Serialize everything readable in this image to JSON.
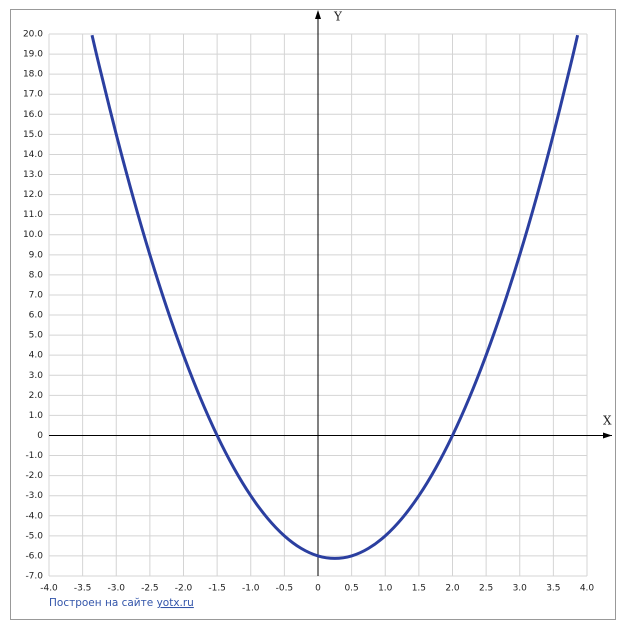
{
  "chart_data": {
    "type": "line",
    "x_label": "X",
    "y_label": "Y",
    "x": [
      -3.36,
      -3.25,
      -3,
      -2.75,
      -2.5,
      -2.25,
      -2,
      -1.75,
      -1.5,
      -1.25,
      -1,
      -0.75,
      -0.5,
      -0.25,
      0,
      0.25,
      0.5,
      0.75,
      1,
      1.25,
      1.5,
      1.75,
      2,
      2.25,
      2.5,
      2.75,
      3,
      3.25,
      3.5,
      3.75,
      3.86
    ],
    "series": [
      {
        "color": "#2b3fa0",
        "values": [
          19.94,
          18.375,
          15,
          11.875,
          9,
          6.375,
          4,
          1.875,
          0,
          -1.625,
          -3,
          -4.125,
          -5,
          -5.625,
          -6,
          -6.125,
          -6,
          -5.625,
          -5,
          -4.125,
          -3,
          -1.625,
          0,
          1.875,
          4,
          6.375,
          9,
          11.875,
          15,
          18.375,
          19.94
        ]
      }
    ],
    "xlim": [
      -4,
      4
    ],
    "ylim": [
      -7,
      20
    ],
    "xticks": [
      {
        "value": -4,
        "label": "-4.0"
      },
      {
        "value": -3.5,
        "label": "-3.5"
      },
      {
        "value": -3,
        "label": "-3.0"
      },
      {
        "value": -2.5,
        "label": "-2.5"
      },
      {
        "value": -2,
        "label": "-2.0"
      },
      {
        "value": -1.5,
        "label": "-1.5"
      },
      {
        "value": -1,
        "label": "-1.0"
      },
      {
        "value": -0.5,
        "label": "-0.5"
      },
      0,
      0.5,
      {
        "value": 1,
        "label": "1.0"
      },
      1.5,
      {
        "value": 2,
        "label": "2.0"
      },
      2.5,
      {
        "value": 3,
        "label": "3.0"
      },
      3.5,
      {
        "value": 4,
        "label": "4.0"
      }
    ],
    "yticks": [
      {
        "value": 20,
        "label": "20.0"
      },
      {
        "value": 19,
        "label": "19.0"
      },
      {
        "value": 18,
        "label": "18.0"
      },
      {
        "value": 17,
        "label": "17.0"
      },
      {
        "value": 16,
        "label": "16.0"
      },
      {
        "value": 15,
        "label": "15.0"
      },
      {
        "value": 14,
        "label": "14.0"
      },
      {
        "value": 13,
        "label": "13.0"
      },
      {
        "value": 12,
        "label": "12.0"
      },
      {
        "value": 11,
        "label": "11.0"
      },
      {
        "value": 10,
        "label": "10.0"
      },
      {
        "value": 9,
        "label": "9.0"
      },
      {
        "value": 8,
        "label": "8.0"
      },
      {
        "value": 7,
        "label": "7.0"
      },
      {
        "value": 6,
        "label": "6.0"
      },
      {
        "value": 5,
        "label": "5.0"
      },
      {
        "value": 4,
        "label": "4.0"
      },
      {
        "value": 3,
        "label": "3.0"
      },
      {
        "value": 2,
        "label": "2.0"
      },
      {
        "value": 1,
        "label": "1.0"
      },
      0,
      {
        "value": -1,
        "label": "-1.0"
      },
      {
        "value": -2,
        "label": "-2.0"
      },
      {
        "value": -3,
        "label": "-3.0"
      },
      {
        "value": -4,
        "label": "-4.0"
      },
      {
        "value": -5,
        "label": "-5.0"
      },
      {
        "value": -6,
        "label": "-6.0"
      },
      {
        "value": -7,
        "label": "-7.0"
      }
    ],
    "grid": true,
    "footer": {
      "text": "Построен на сайте",
      "link": "yotx.ru"
    }
  }
}
